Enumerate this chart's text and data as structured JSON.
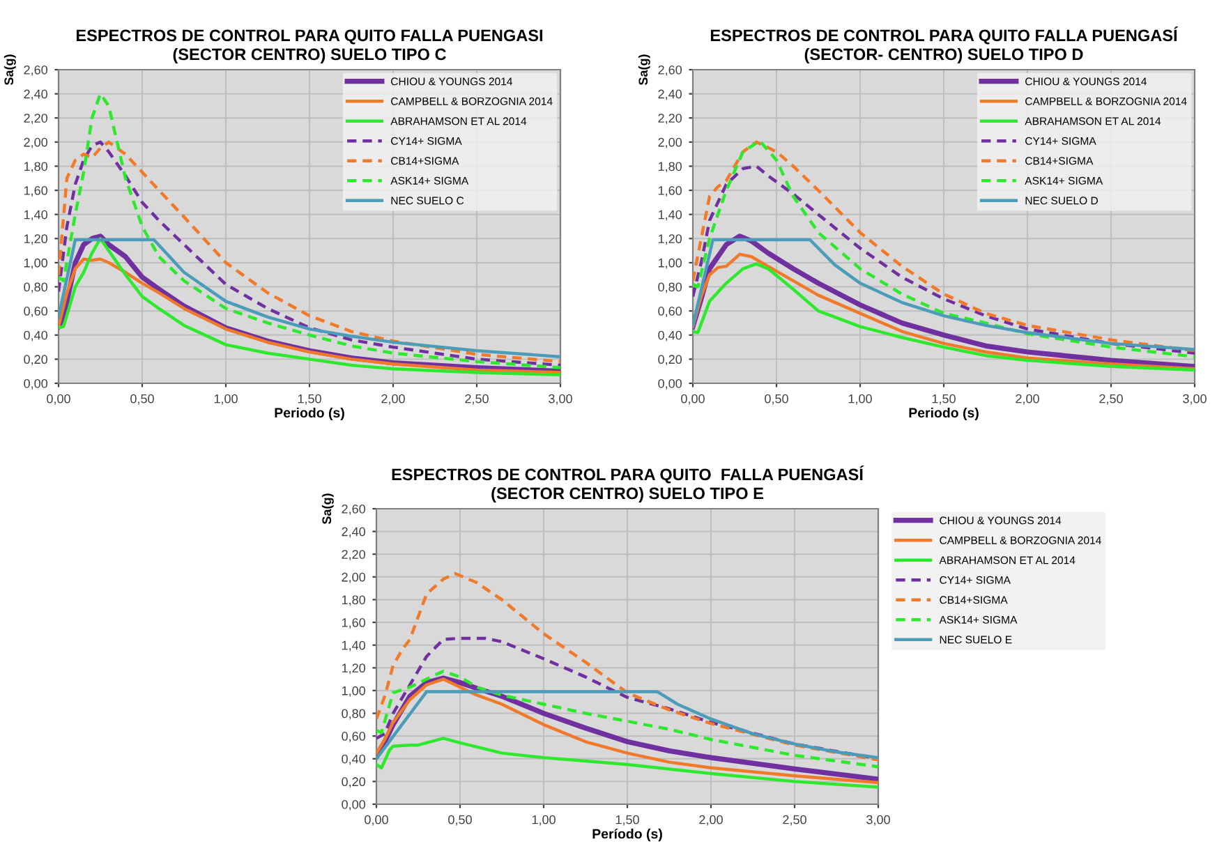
{
  "chart_data": [
    {
      "type": "line",
      "title": "ESPECTROS DE CONTROL PARA QUITO FALLA PUENGASI\n(SECTOR CENTRO) SUELO TIPO C",
      "xlabel": "Periodo (s)",
      "ylabel": "Sa(g)",
      "legend": "top right",
      "grid": true,
      "marker": "none",
      "xlim": [
        0,
        3
      ],
      "ylim": [
        0,
        2.6
      ],
      "xticks": [
        {
          "value": 0,
          "label": "0,00"
        },
        {
          "value": 0.5,
          "label": "0,50"
        },
        {
          "value": 1,
          "label": "1,00"
        },
        {
          "value": 1.5,
          "label": "1,50"
        },
        {
          "value": 2,
          "label": "2,00"
        },
        {
          "value": 2.5,
          "label": "2,50"
        },
        {
          "value": 3,
          "label": "3,00"
        }
      ],
      "yticks": [
        {
          "value": 0,
          "label": "0,00"
        },
        {
          "value": 0.2,
          "label": "0,20"
        },
        {
          "value": 0.4,
          "label": "0,40"
        },
        {
          "value": 0.6,
          "label": "0,60"
        },
        {
          "value": 0.8,
          "label": "0,80"
        },
        {
          "value": 1,
          "label": "1,00"
        },
        {
          "value": 1.2,
          "label": "1,20"
        },
        {
          "value": 1.4,
          "label": "1,40"
        },
        {
          "value": 1.6,
          "label": "1,60"
        },
        {
          "value": 1.8,
          "label": "1,80"
        },
        {
          "value": 2,
          "label": "2,00"
        },
        {
          "value": 2.2,
          "label": "2,20"
        },
        {
          "value": 2.4,
          "label": "2,40"
        },
        {
          "value": 2.6,
          "label": "2,60"
        }
      ],
      "series": [
        {
          "name": "CHIOU & YOUNGS 2014",
          "color": "#7030a0",
          "line_style": "solid",
          "x": [
            0,
            0.03,
            0.1,
            0.15,
            0.2,
            0.25,
            0.3,
            0.4,
            0.5,
            0.6,
            0.75,
            1,
            1.25,
            1.5,
            1.75,
            2,
            2.5,
            3
          ],
          "values": [
            0.47,
            0.55,
            1.0,
            1.15,
            1.2,
            1.22,
            1.15,
            1.05,
            0.88,
            0.78,
            0.64,
            0.46,
            0.35,
            0.27,
            0.21,
            0.17,
            0.13,
            0.1
          ]
        },
        {
          "name": "CAMPBELL & BORZOGNIA 2014",
          "color": "#f07a2a",
          "line_style": "solid",
          "x": [
            0,
            0.05,
            0.1,
            0.15,
            0.2,
            0.25,
            0.3,
            0.4,
            0.5,
            0.6,
            0.75,
            1,
            1.25,
            1.5,
            1.75,
            2,
            2.5,
            3
          ],
          "values": [
            0.47,
            0.75,
            0.95,
            1.03,
            1.02,
            1.03,
            1.0,
            0.92,
            0.83,
            0.75,
            0.62,
            0.45,
            0.34,
            0.26,
            0.2,
            0.16,
            0.11,
            0.09
          ]
        },
        {
          "name": "ABRAHAMSON ET AL 2014",
          "color": "#2ee82e",
          "line_style": "solid",
          "x": [
            0,
            0.03,
            0.1,
            0.15,
            0.2,
            0.25,
            0.3,
            0.4,
            0.5,
            0.6,
            0.75,
            1,
            1.25,
            1.5,
            1.75,
            2,
            2.5,
            3
          ],
          "values": [
            0.46,
            0.47,
            0.8,
            0.92,
            1.08,
            1.2,
            1.1,
            0.9,
            0.72,
            0.62,
            0.48,
            0.32,
            0.25,
            0.2,
            0.15,
            0.12,
            0.09,
            0.07
          ]
        },
        {
          "name": "CY14+ SIGMA",
          "color": "#7030a0",
          "line_style": "dashed",
          "x": [
            0,
            0.05,
            0.1,
            0.15,
            0.2,
            0.25,
            0.3,
            0.4,
            0.5,
            0.6,
            0.75,
            1,
            1.25,
            1.5,
            1.75,
            2,
            2.5,
            3
          ],
          "values": [
            0.76,
            1.3,
            1.65,
            1.85,
            1.97,
            2.0,
            1.92,
            1.72,
            1.5,
            1.35,
            1.15,
            0.82,
            0.62,
            0.46,
            0.36,
            0.3,
            0.2,
            0.15
          ]
        },
        {
          "name": "CB14+SIGMA",
          "color": "#f07a2a",
          "line_style": "dashed",
          "x": [
            0,
            0.05,
            0.1,
            0.15,
            0.2,
            0.25,
            0.3,
            0.4,
            0.5,
            0.6,
            0.75,
            1,
            1.25,
            1.5,
            1.75,
            2,
            2.5,
            3
          ],
          "values": [
            0.9,
            1.7,
            1.85,
            1.9,
            1.87,
            1.95,
            2.0,
            1.9,
            1.75,
            1.6,
            1.38,
            1.0,
            0.75,
            0.56,
            0.43,
            0.35,
            0.24,
            0.18
          ]
        },
        {
          "name": "ASK14+ SIGMA",
          "color": "#2ee82e",
          "line_style": "dashed",
          "x": [
            0,
            0.03,
            0.1,
            0.15,
            0.2,
            0.25,
            0.3,
            0.35,
            0.4,
            0.5,
            0.6,
            0.75,
            1,
            1.25,
            1.5,
            1.75,
            2,
            2.5,
            3
          ],
          "values": [
            0.88,
            0.85,
            1.4,
            1.75,
            2.2,
            2.4,
            2.3,
            2.0,
            1.7,
            1.3,
            1.05,
            0.85,
            0.62,
            0.5,
            0.4,
            0.31,
            0.25,
            0.18,
            0.13
          ]
        },
        {
          "name": "NEC SUELO C",
          "color": "#4a9cb8",
          "line_style": "solid",
          "x": [
            0,
            0.1,
            0.57,
            0.75,
            1,
            1.25,
            1.5,
            1.75,
            2,
            2.5,
            3
          ],
          "values": [
            0.55,
            1.19,
            1.19,
            0.92,
            0.68,
            0.55,
            0.45,
            0.39,
            0.34,
            0.27,
            0.22
          ]
        }
      ]
    },
    {
      "type": "line",
      "title": "ESPECTROS DE CONTROL PARA QUITO FALLA PUENGASÍ\n(SECTOR- CENTRO) SUELO TIPO D",
      "xlabel": "Periodo (s)",
      "ylabel": "Sa(g)",
      "legend": "top right",
      "grid": true,
      "marker": "none",
      "xlim": [
        0,
        3
      ],
      "ylim": [
        0,
        2.6
      ],
      "xticks": [
        {
          "value": 0,
          "label": "0,00"
        },
        {
          "value": 0.5,
          "label": "0,50"
        },
        {
          "value": 1,
          "label": "1,00"
        },
        {
          "value": 1.5,
          "label": "1,50"
        },
        {
          "value": 2,
          "label": "2,00"
        },
        {
          "value": 2.5,
          "label": "2,50"
        },
        {
          "value": 3,
          "label": "3,00"
        }
      ],
      "yticks": [
        {
          "value": 0,
          "label": "0,00"
        },
        {
          "value": 0.2,
          "label": "0,20"
        },
        {
          "value": 0.4,
          "label": "0,40"
        },
        {
          "value": 0.6,
          "label": "0,60"
        },
        {
          "value": 0.8,
          "label": "0,80"
        },
        {
          "value": 1,
          "label": "1,00"
        },
        {
          "value": 1.2,
          "label": "1,20"
        },
        {
          "value": 1.4,
          "label": "1,40"
        },
        {
          "value": 1.6,
          "label": "1,60"
        },
        {
          "value": 1.8,
          "label": "1,80"
        },
        {
          "value": 2,
          "label": "2,00"
        },
        {
          "value": 2.2,
          "label": "2,20"
        },
        {
          "value": 2.4,
          "label": "2,40"
        },
        {
          "value": 2.6,
          "label": "2,60"
        }
      ],
      "series": [
        {
          "name": "CHIOU & YOUNGS 2014",
          "color": "#7030a0",
          "line_style": "solid",
          "x": [
            0,
            0.05,
            0.1,
            0.2,
            0.28,
            0.35,
            0.45,
            0.6,
            0.75,
            1,
            1.25,
            1.5,
            1.75,
            2,
            2.5,
            3
          ],
          "values": [
            0.47,
            0.7,
            0.95,
            1.15,
            1.22,
            1.18,
            1.08,
            0.95,
            0.83,
            0.65,
            0.5,
            0.4,
            0.31,
            0.26,
            0.19,
            0.14
          ]
        },
        {
          "name": "CAMPBELL & BORZOGNIA 2014",
          "color": "#f07a2a",
          "line_style": "solid",
          "x": [
            0,
            0.05,
            0.1,
            0.15,
            0.2,
            0.28,
            0.35,
            0.45,
            0.6,
            0.75,
            1,
            1.25,
            1.5,
            1.75,
            2,
            2.5,
            3
          ],
          "values": [
            0.47,
            0.72,
            0.9,
            0.96,
            0.97,
            1.07,
            1.05,
            0.97,
            0.85,
            0.73,
            0.58,
            0.43,
            0.33,
            0.26,
            0.21,
            0.16,
            0.12
          ]
        },
        {
          "name": "ABRAHAMSON ET AL 2014",
          "color": "#2ee82e",
          "line_style": "solid",
          "x": [
            0,
            0.03,
            0.1,
            0.2,
            0.3,
            0.38,
            0.45,
            0.6,
            0.75,
            1,
            1.25,
            1.5,
            1.75,
            2,
            2.5,
            3
          ],
          "values": [
            0.43,
            0.42,
            0.68,
            0.83,
            0.95,
            0.99,
            0.95,
            0.78,
            0.6,
            0.47,
            0.38,
            0.3,
            0.23,
            0.19,
            0.14,
            0.11
          ]
        },
        {
          "name": "CY14+ SIGMA",
          "color": "#7030a0",
          "line_style": "dashed",
          "x": [
            0,
            0.05,
            0.1,
            0.2,
            0.3,
            0.38,
            0.45,
            0.6,
            0.75,
            1,
            1.25,
            1.5,
            1.75,
            2,
            2.5,
            3
          ],
          "values": [
            0.72,
            1.0,
            1.35,
            1.65,
            1.78,
            1.8,
            1.72,
            1.57,
            1.4,
            1.12,
            0.88,
            0.7,
            0.56,
            0.45,
            0.33,
            0.25
          ]
        },
        {
          "name": "CB14+SIGMA",
          "color": "#f07a2a",
          "line_style": "dashed",
          "x": [
            0,
            0.05,
            0.1,
            0.15,
            0.2,
            0.3,
            0.38,
            0.5,
            0.6,
            0.75,
            1,
            1.25,
            1.5,
            1.75,
            2,
            2.5,
            3
          ],
          "values": [
            0.85,
            1.2,
            1.55,
            1.63,
            1.68,
            1.92,
            2.0,
            1.92,
            1.8,
            1.6,
            1.25,
            0.97,
            0.74,
            0.58,
            0.48,
            0.36,
            0.27
          ]
        },
        {
          "name": "ASK14+ SIGMA",
          "color": "#2ee82e",
          "line_style": "dashed",
          "x": [
            0,
            0.03,
            0.1,
            0.2,
            0.3,
            0.4,
            0.5,
            0.6,
            0.75,
            1,
            1.25,
            1.5,
            1.75,
            2,
            2.5,
            3
          ],
          "values": [
            0.82,
            0.8,
            1.2,
            1.6,
            1.92,
            2.01,
            1.85,
            1.55,
            1.25,
            0.95,
            0.74,
            0.58,
            0.5,
            0.41,
            0.3,
            0.22
          ]
        },
        {
          "name": "NEC SUELO D",
          "color": "#4a9cb8",
          "line_style": "solid",
          "x": [
            0,
            0.12,
            0.7,
            0.85,
            1,
            1.25,
            1.5,
            1.75,
            2,
            2.5,
            3
          ],
          "values": [
            0.48,
            1.19,
            1.19,
            0.98,
            0.83,
            0.67,
            0.56,
            0.48,
            0.42,
            0.33,
            0.28
          ]
        }
      ]
    },
    {
      "type": "line",
      "title": "ESPECTROS DE CONTROL PARA QUITO  FALLA PUENGASÍ\n(SECTOR CENTRO) SUELO TIPO E",
      "xlabel": "Período (s)",
      "ylabel": "Sa(g)",
      "legend": "right",
      "grid": true,
      "marker": "none",
      "xlim": [
        0,
        3
      ],
      "ylim": [
        0,
        2.6
      ],
      "xticks": [
        {
          "value": 0,
          "label": "0,00"
        },
        {
          "value": 0.5,
          "label": "0,50"
        },
        {
          "value": 1,
          "label": "1,00"
        },
        {
          "value": 1.5,
          "label": "1,50"
        },
        {
          "value": 2,
          "label": "2,00"
        },
        {
          "value": 2.5,
          "label": "2,50"
        },
        {
          "value": 3,
          "label": "3,00"
        }
      ],
      "yticks": [
        {
          "value": 0,
          "label": "0,00"
        },
        {
          "value": 0.2,
          "label": "0,20"
        },
        {
          "value": 0.4,
          "label": "0,40"
        },
        {
          "value": 0.6,
          "label": "0,60"
        },
        {
          "value": 0.8,
          "label": "0,80"
        },
        {
          "value": 1,
          "label": "1,00"
        },
        {
          "value": 1.2,
          "label": "1,20"
        },
        {
          "value": 1.4,
          "label": "1,40"
        },
        {
          "value": 1.6,
          "label": "1,60"
        },
        {
          "value": 1.8,
          "label": "1,80"
        },
        {
          "value": 2,
          "label": "2,00"
        },
        {
          "value": 2.2,
          "label": "2,20"
        },
        {
          "value": 2.4,
          "label": "2,40"
        },
        {
          "value": 2.6,
          "label": "2,60"
        }
      ],
      "series": [
        {
          "name": "CHIOU & YOUNGS 2014",
          "color": "#7030a0",
          "line_style": "solid",
          "x": [
            0,
            0.05,
            0.1,
            0.2,
            0.3,
            0.4,
            0.5,
            0.6,
            0.75,
            1,
            1.25,
            1.5,
            1.75,
            2,
            2.5,
            3
          ],
          "values": [
            0.42,
            0.55,
            0.7,
            0.95,
            1.07,
            1.11,
            1.07,
            1.02,
            0.95,
            0.8,
            0.67,
            0.55,
            0.47,
            0.41,
            0.31,
            0.22
          ]
        },
        {
          "name": "CAMPBELL & BORZOGNIA 2014",
          "color": "#f07a2a",
          "line_style": "solid",
          "x": [
            0,
            0.05,
            0.1,
            0.2,
            0.3,
            0.4,
            0.5,
            0.6,
            0.75,
            1,
            1.25,
            1.5,
            1.75,
            2,
            2.5,
            3
          ],
          "values": [
            0.45,
            0.57,
            0.72,
            0.92,
            1.05,
            1.1,
            1.03,
            0.96,
            0.88,
            0.7,
            0.55,
            0.45,
            0.37,
            0.32,
            0.25,
            0.19
          ]
        },
        {
          "name": "ABRAHAMSON ET AL 2014",
          "color": "#2ee82e",
          "line_style": "solid",
          "x": [
            0,
            0.03,
            0.08,
            0.1,
            0.2,
            0.25,
            0.35,
            0.4,
            0.5,
            0.75,
            1,
            1.25,
            1.5,
            1.75,
            2,
            2.5,
            3
          ],
          "values": [
            0.35,
            0.32,
            0.48,
            0.51,
            0.52,
            0.52,
            0.56,
            0.58,
            0.54,
            0.45,
            0.41,
            0.38,
            0.35,
            0.31,
            0.27,
            0.2,
            0.15
          ]
        },
        {
          "name": "CY14+ SIGMA",
          "color": "#7030a0",
          "line_style": "dashed",
          "x": [
            0,
            0.05,
            0.1,
            0.2,
            0.3,
            0.4,
            0.5,
            0.65,
            0.75,
            1,
            1.25,
            1.5,
            1.75,
            2,
            2.5,
            3
          ],
          "values": [
            0.58,
            0.62,
            0.8,
            1.05,
            1.3,
            1.45,
            1.46,
            1.46,
            1.43,
            1.28,
            1.12,
            0.94,
            0.84,
            0.72,
            0.53,
            0.4
          ]
        },
        {
          "name": "CB14+SIGMA",
          "color": "#f07a2a",
          "line_style": "dashed",
          "x": [
            0,
            0.05,
            0.1,
            0.15,
            0.2,
            0.3,
            0.4,
            0.47,
            0.6,
            0.75,
            1,
            1.25,
            1.5,
            1.75,
            2,
            2.5,
            3
          ],
          "values": [
            0.75,
            0.95,
            1.22,
            1.35,
            1.45,
            1.85,
            1.98,
            2.03,
            1.95,
            1.8,
            1.5,
            1.25,
            0.98,
            0.83,
            0.71,
            0.52,
            0.39
          ]
        },
        {
          "name": "ASK14+ SIGMA",
          "color": "#2ee82e",
          "line_style": "dashed",
          "x": [
            0,
            0.03,
            0.1,
            0.2,
            0.3,
            0.4,
            0.5,
            0.6,
            0.75,
            1,
            1.25,
            1.5,
            1.75,
            2,
            2.5,
            3
          ],
          "values": [
            0.65,
            0.63,
            0.98,
            1.03,
            1.1,
            1.17,
            1.12,
            1.03,
            0.96,
            0.88,
            0.8,
            0.73,
            0.66,
            0.57,
            0.43,
            0.33
          ]
        },
        {
          "name": "NEC SUELO E",
          "color": "#4a9cb8",
          "line_style": "solid",
          "x": [
            0,
            0.3,
            1.68,
            1.8,
            2,
            2.25,
            2.5,
            2.75,
            3
          ],
          "values": [
            0.4,
            0.99,
            0.99,
            0.88,
            0.75,
            0.62,
            0.53,
            0.46,
            0.41
          ]
        }
      ]
    }
  ]
}
